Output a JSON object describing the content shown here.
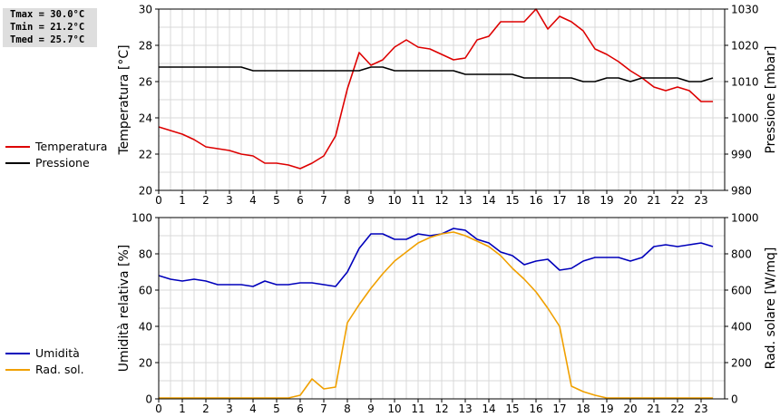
{
  "stats": {
    "tmax": "Tmax = 30.0°C",
    "tmin": "Tmin = 21.2°C",
    "tmed": "Tmed = 25.7°C"
  },
  "legend_top": [
    {
      "label": "Temperatura",
      "color": "#dd0000"
    },
    {
      "label": "Pressione",
      "color": "#000000"
    }
  ],
  "legend_bottom": [
    {
      "label": "Umidità",
      "color": "#0000bb"
    },
    {
      "label": "Rad. sol.",
      "color": "#f0a000"
    }
  ],
  "chart_data": [
    {
      "type": "line",
      "ylabel": "Temperatura [°C]",
      "y2label": "Pressione [mbar]",
      "ylim": [
        20,
        30
      ],
      "y2lim": [
        980,
        1030
      ],
      "xlim": [
        0,
        24
      ],
      "xticks": [
        "0",
        "1",
        "2",
        "3",
        "4",
        "5",
        "6",
        "7",
        "8",
        "9",
        "10",
        "11",
        "12",
        "13",
        "14",
        "15",
        "16",
        "17",
        "18",
        "19",
        "20",
        "21",
        "22",
        "23"
      ],
      "yticks": [
        "20",
        "22",
        "24",
        "26",
        "28",
        "30"
      ],
      "y2ticks": [
        "980",
        "990",
        "1000",
        "1010",
        "1020",
        "1030"
      ],
      "grid": true,
      "series": [
        {
          "name": "Temperatura",
          "axis": "left",
          "color": "#dd0000",
          "x": [
            0,
            0.5,
            1,
            1.5,
            2,
            2.5,
            3,
            3.5,
            4,
            4.5,
            5,
            5.5,
            6,
            6.5,
            7,
            7.5,
            8,
            8.5,
            9,
            9.5,
            10,
            10.5,
            11,
            11.5,
            12,
            12.5,
            13,
            13.5,
            14,
            14.5,
            15,
            15.5,
            16,
            16.5,
            17,
            17.5,
            18,
            18.5,
            19,
            19.5,
            20,
            20.5,
            21,
            21.5,
            22,
            22.5,
            23,
            23.5
          ],
          "y": [
            23.5,
            23.3,
            23.1,
            22.8,
            22.4,
            22.3,
            22.2,
            22.0,
            21.9,
            21.5,
            21.5,
            21.4,
            21.2,
            21.5,
            21.9,
            23.0,
            25.6,
            27.6,
            26.9,
            27.2,
            27.9,
            28.3,
            27.9,
            27.8,
            27.5,
            27.2,
            27.3,
            28.3,
            28.5,
            29.3,
            29.3,
            29.3,
            30.0,
            28.9,
            29.6,
            29.3,
            28.8,
            27.8,
            27.5,
            27.1,
            26.6,
            26.2,
            25.7,
            25.5,
            25.7,
            25.5,
            24.9,
            24.9
          ]
        },
        {
          "name": "Pressione",
          "axis": "right",
          "color": "#000000",
          "x": [
            0,
            3.5,
            4,
            5,
            6,
            7,
            8,
            8.5,
            9,
            9.5,
            10,
            11,
            12,
            12.5,
            13,
            13.5,
            14,
            15,
            15.5,
            16,
            17,
            17.5,
            18,
            18.5,
            19,
            19.5,
            20,
            20.5,
            21,
            22,
            22.5,
            23,
            23.5
          ],
          "y": [
            1014,
            1014,
            1013,
            1013,
            1013,
            1013,
            1013,
            1013,
            1014,
            1014,
            1013,
            1013,
            1013,
            1013,
            1012,
            1012,
            1012,
            1012,
            1011,
            1011,
            1011,
            1011,
            1010,
            1010,
            1011,
            1011,
            1010,
            1011,
            1011,
            1011,
            1010,
            1010,
            1011
          ]
        }
      ]
    },
    {
      "type": "line",
      "xlabel": "",
      "ylabel": "Umidità relativa [%]",
      "y2label": "Rad. solare [W/mq]",
      "ylim": [
        0,
        100
      ],
      "y2lim": [
        0,
        1000
      ],
      "xlim": [
        0,
        24
      ],
      "xticks": [
        "0",
        "1",
        "2",
        "3",
        "4",
        "5",
        "6",
        "7",
        "8",
        "9",
        "10",
        "11",
        "12",
        "13",
        "14",
        "15",
        "16",
        "17",
        "18",
        "19",
        "20",
        "21",
        "22",
        "23"
      ],
      "yticks": [
        "0",
        "20",
        "40",
        "60",
        "80",
        "100"
      ],
      "y2ticks": [
        "0",
        "200",
        "400",
        "600",
        "800",
        "1000"
      ],
      "grid": true,
      "series": [
        {
          "name": "Umidità",
          "axis": "left",
          "color": "#0000bb",
          "x": [
            0,
            0.5,
            1,
            1.5,
            2,
            2.5,
            3,
            3.5,
            4,
            4.5,
            5,
            5.5,
            6,
            6.5,
            7,
            7.5,
            8,
            8.5,
            9,
            9.5,
            10,
            10.5,
            11,
            11.5,
            12,
            12.5,
            13,
            13.5,
            14,
            14.5,
            15,
            15.5,
            16,
            16.5,
            17,
            17.5,
            18,
            18.5,
            19,
            19.5,
            20,
            20.5,
            21,
            21.5,
            22,
            22.5,
            23,
            23.5
          ],
          "y": [
            68,
            66,
            65,
            66,
            65,
            63,
            63,
            63,
            62,
            65,
            63,
            63,
            64,
            64,
            63,
            62,
            70,
            83,
            91,
            91,
            88,
            88,
            91,
            90,
            91,
            94,
            93,
            88,
            86,
            81,
            79,
            74,
            76,
            77,
            71,
            72,
            76,
            78,
            78,
            78,
            76,
            78,
            84,
            85,
            84,
            85,
            86,
            84
          ]
        },
        {
          "name": "Rad. sol.",
          "axis": "right",
          "color": "#f0a000",
          "x": [
            0,
            0.5,
            1,
            1.5,
            2,
            2.5,
            3,
            3.5,
            4,
            4.5,
            5,
            5.5,
            6,
            6.5,
            7,
            7.5,
            8,
            8.5,
            9,
            9.5,
            10,
            10.5,
            11,
            11.5,
            12,
            12.5,
            13,
            13.5,
            14,
            14.5,
            15,
            15.5,
            16,
            16.5,
            17,
            17.5,
            18,
            18.5,
            19,
            19.5,
            20,
            20.5,
            21,
            21.5,
            22,
            22.5,
            23,
            23.5
          ],
          "y": [
            5,
            5,
            5,
            5,
            5,
            5,
            5,
            5,
            5,
            5,
            5,
            5,
            20,
            110,
            55,
            65,
            420,
            520,
            610,
            690,
            760,
            810,
            860,
            890,
            910,
            920,
            900,
            870,
            840,
            790,
            720,
            660,
            590,
            500,
            400,
            70,
            40,
            20,
            5,
            5,
            5,
            5,
            5,
            5,
            5,
            5,
            5,
            5
          ]
        }
      ]
    }
  ]
}
